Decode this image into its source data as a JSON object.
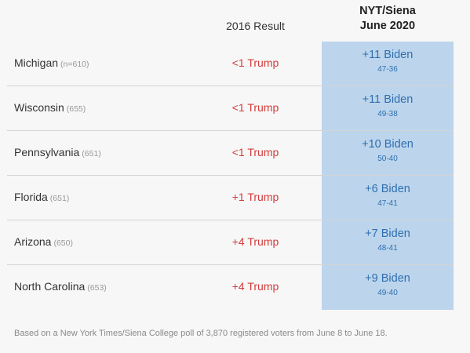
{
  "header": {
    "result_label": "2016 Result",
    "poll_line1": "NYT/Siena",
    "poll_line2": "June 2020"
  },
  "colors": {
    "trump": "#d43b3b",
    "biden": "#2f6fb0",
    "poll_column": "#bcd5ec"
  },
  "rows": [
    {
      "state": "Michigan",
      "n": "(n=610)",
      "result": "<1 Trump",
      "margin": "+11 Biden",
      "score": "47-36"
    },
    {
      "state": "Wisconsin",
      "n": "(655)",
      "result": "<1 Trump",
      "margin": "+11 Biden",
      "score": "49-38"
    },
    {
      "state": "Pennsylvania",
      "n": "(651)",
      "result": "<1 Trump",
      "margin": "+10 Biden",
      "score": "50-40"
    },
    {
      "state": "Florida",
      "n": "(651)",
      "result": "+1 Trump",
      "margin": "+6 Biden",
      "score": "47-41"
    },
    {
      "state": "Arizona",
      "n": "(650)",
      "result": "+4 Trump",
      "margin": "+7 Biden",
      "score": "48-41"
    },
    {
      "state": "North Carolina",
      "n": "(653)",
      "result": "+4 Trump",
      "margin": "+9 Biden",
      "score": "49-40"
    }
  ],
  "footnote": "Based on a New York Times/Siena College poll of 3,870 registered voters from June 8 to June 18."
}
